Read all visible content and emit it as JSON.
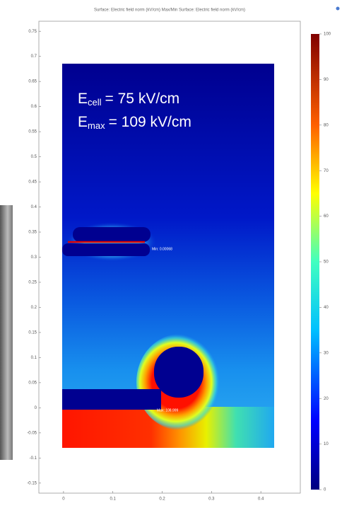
{
  "chart_data": {
    "type": "field",
    "title": "Surface: Electric field norm (kV/cm)  Max/Min Surface: Electric field norm (kV/cm)",
    "xlim": [
      -0.05,
      0.48
    ],
    "xticks": [
      0,
      0.1,
      0.2,
      0.3,
      0.4
    ],
    "ylim": [
      -0.17,
      0.77
    ],
    "yticks": [
      0.75,
      0.7,
      0.65,
      0.6,
      0.55,
      0.5,
      0.45,
      0.4,
      0.35,
      0.3,
      0.25,
      0.2,
      0.15,
      0.1,
      0.05,
      0,
      -0.05,
      -0.1,
      -0.15
    ],
    "colorbar": {
      "lim": [
        0,
        100
      ],
      "ticks": [
        0,
        10,
        20,
        30,
        40,
        50,
        60,
        70,
        80,
        90,
        100
      ]
    },
    "annotations": [
      {
        "symbol": "E",
        "subscript": "cell",
        "text": "= 75 kV/cm"
      },
      {
        "symbol": "E",
        "subscript": "max",
        "text": "= 109 kV/cm"
      }
    ],
    "min_label": "Min: 0.00068",
    "max_label": "Max: 108.999"
  }
}
